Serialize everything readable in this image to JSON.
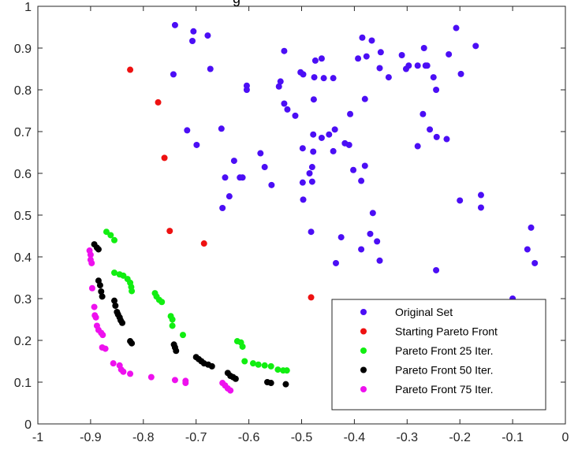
{
  "chart_data": {
    "type": "scatter",
    "title": "g",
    "xlim": [
      -1,
      0
    ],
    "ylim": [
      0,
      1
    ],
    "xticks": [
      -1,
      -0.9,
      -0.8,
      -0.7,
      -0.6,
      -0.5,
      -0.4,
      -0.3,
      -0.2,
      -0.1,
      0
    ],
    "xtick_labels": [
      "-1",
      "-0.9",
      "-0.8",
      "-0.7",
      "-0.6",
      "-0.5",
      "-0.4",
      "-0.3",
      "-0.2",
      "-0.1",
      "0"
    ],
    "yticks": [
      0,
      0.1,
      0.2,
      0.3,
      0.4,
      0.5,
      0.6,
      0.7,
      0.8,
      0.9,
      1
    ],
    "ytick_labels": [
      "0",
      "0.1",
      "0.2",
      "0.3",
      "0.4",
      "0.5",
      "0.6",
      "0.7",
      "0.8",
      "0.9",
      "1"
    ],
    "grid": false,
    "legend_position": "bottom-right",
    "series": [
      {
        "name": "Original Set",
        "color": "#4b0ef5",
        "points": [
          [
            -0.74,
            0.955
          ],
          [
            -0.705,
            0.94
          ],
          [
            -0.678,
            0.93
          ],
          [
            -0.707,
            0.917
          ],
          [
            -0.743,
            0.837
          ],
          [
            -0.673,
            0.85
          ],
          [
            -0.604,
            0.81
          ],
          [
            -0.604,
            0.8
          ],
          [
            -0.652,
            0.707
          ],
          [
            -0.717,
            0.703
          ],
          [
            -0.699,
            0.668
          ],
          [
            -0.628,
            0.63
          ],
          [
            -0.612,
            0.59
          ],
          [
            -0.617,
            0.59
          ],
          [
            -0.645,
            0.59
          ],
          [
            -0.637,
            0.545
          ],
          [
            -0.65,
            0.517
          ],
          [
            -0.578,
            0.648
          ],
          [
            -0.57,
            0.615
          ],
          [
            -0.557,
            0.572
          ],
          [
            -0.543,
            0.808
          ],
          [
            -0.54,
            0.82
          ],
          [
            -0.533,
            0.893
          ],
          [
            -0.533,
            0.767
          ],
          [
            -0.527,
            0.753
          ],
          [
            -0.512,
            0.738
          ],
          [
            -0.502,
            0.842
          ],
          [
            -0.497,
            0.837
          ],
          [
            -0.498,
            0.66
          ],
          [
            -0.498,
            0.578
          ],
          [
            -0.497,
            0.537
          ],
          [
            -0.485,
            0.6
          ],
          [
            -0.48,
            0.58
          ],
          [
            -0.48,
            0.615
          ],
          [
            -0.478,
            0.652
          ],
          [
            -0.478,
            0.693
          ],
          [
            -0.477,
            0.777
          ],
          [
            -0.476,
            0.83
          ],
          [
            -0.474,
            0.87
          ],
          [
            -0.462,
            0.875
          ],
          [
            -0.458,
            0.828
          ],
          [
            -0.44,
            0.828
          ],
          [
            -0.448,
            0.693
          ],
          [
            -0.462,
            0.685
          ],
          [
            -0.437,
            0.705
          ],
          [
            -0.44,
            0.653
          ],
          [
            -0.418,
            0.672
          ],
          [
            -0.41,
            0.668
          ],
          [
            -0.408,
            0.742
          ],
          [
            -0.402,
            0.608
          ],
          [
            -0.393,
            0.875
          ],
          [
            -0.385,
            0.925
          ],
          [
            -0.377,
            0.88
          ],
          [
            -0.367,
            0.918
          ],
          [
            -0.38,
            0.778
          ],
          [
            -0.38,
            0.618
          ],
          [
            -0.387,
            0.582
          ],
          [
            -0.365,
            0.505
          ],
          [
            -0.37,
            0.455
          ],
          [
            -0.357,
            0.437
          ],
          [
            -0.387,
            0.418
          ],
          [
            -0.352,
            0.391
          ],
          [
            -0.352,
            0.852
          ],
          [
            -0.35,
            0.89
          ],
          [
            -0.335,
            0.83
          ],
          [
            -0.31,
            0.883
          ],
          [
            -0.302,
            0.85
          ],
          [
            -0.297,
            0.858
          ],
          [
            -0.28,
            0.858
          ],
          [
            -0.265,
            0.858
          ],
          [
            -0.268,
            0.9
          ],
          [
            -0.262,
            0.858
          ],
          [
            -0.25,
            0.83
          ],
          [
            -0.245,
            0.8
          ],
          [
            -0.27,
            0.742
          ],
          [
            -0.257,
            0.705
          ],
          [
            -0.244,
            0.687
          ],
          [
            -0.225,
            0.682
          ],
          [
            -0.28,
            0.665
          ],
          [
            -0.221,
            0.885
          ],
          [
            -0.207,
            0.948
          ],
          [
            -0.198,
            0.838
          ],
          [
            -0.17,
            0.905
          ],
          [
            -0.2,
            0.535
          ],
          [
            -0.16,
            0.548
          ],
          [
            -0.16,
            0.518
          ],
          [
            -0.245,
            0.368
          ],
          [
            -0.065,
            0.47
          ],
          [
            -0.072,
            0.418
          ],
          [
            -0.058,
            0.385
          ],
          [
            -0.1,
            0.3
          ],
          [
            -0.435,
            0.385
          ],
          [
            -0.482,
            0.46
          ],
          [
            -0.425,
            0.447
          ]
        ]
      },
      {
        "name": "Starting Pareto Front",
        "color": "#ee1111",
        "points": [
          [
            -0.825,
            0.848
          ],
          [
            -0.772,
            0.77
          ],
          [
            -0.76,
            0.637
          ],
          [
            -0.75,
            0.462
          ],
          [
            -0.685,
            0.432
          ],
          [
            -0.482,
            0.303
          ]
        ]
      },
      {
        "name": "Pareto Front 25 Iter.",
        "color": "#11ee11",
        "points": [
          [
            -0.87,
            0.46
          ],
          [
            -0.862,
            0.452
          ],
          [
            -0.855,
            0.44
          ],
          [
            -0.855,
            0.362
          ],
          [
            -0.845,
            0.358
          ],
          [
            -0.838,
            0.355
          ],
          [
            -0.83,
            0.347
          ],
          [
            -0.825,
            0.338
          ],
          [
            -0.823,
            0.328
          ],
          [
            -0.822,
            0.318
          ],
          [
            -0.778,
            0.313
          ],
          [
            -0.775,
            0.305
          ],
          [
            -0.77,
            0.297
          ],
          [
            -0.765,
            0.292
          ],
          [
            -0.748,
            0.258
          ],
          [
            -0.745,
            0.25
          ],
          [
            -0.745,
            0.235
          ],
          [
            -0.725,
            0.213
          ],
          [
            -0.622,
            0.198
          ],
          [
            -0.615,
            0.195
          ],
          [
            -0.612,
            0.185
          ],
          [
            -0.608,
            0.15
          ],
          [
            -0.592,
            0.145
          ],
          [
            -0.582,
            0.142
          ],
          [
            -0.57,
            0.14
          ],
          [
            -0.558,
            0.138
          ],
          [
            -0.545,
            0.13
          ],
          [
            -0.535,
            0.128
          ],
          [
            -0.528,
            0.128
          ]
        ]
      },
      {
        "name": "Pareto Front 50 Iter.",
        "color": "#000000",
        "points": [
          [
            -0.893,
            0.43
          ],
          [
            -0.888,
            0.422
          ],
          [
            -0.885,
            0.418
          ],
          [
            -0.885,
            0.343
          ],
          [
            -0.882,
            0.332
          ],
          [
            -0.88,
            0.317
          ],
          [
            -0.878,
            0.305
          ],
          [
            -0.855,
            0.295
          ],
          [
            -0.853,
            0.283
          ],
          [
            -0.85,
            0.268
          ],
          [
            -0.848,
            0.262
          ],
          [
            -0.845,
            0.255
          ],
          [
            -0.843,
            0.248
          ],
          [
            -0.84,
            0.242
          ],
          [
            -0.825,
            0.198
          ],
          [
            -0.822,
            0.193
          ],
          [
            -0.742,
            0.19
          ],
          [
            -0.74,
            0.183
          ],
          [
            -0.738,
            0.175
          ],
          [
            -0.7,
            0.16
          ],
          [
            -0.695,
            0.155
          ],
          [
            -0.69,
            0.15
          ],
          [
            -0.685,
            0.145
          ],
          [
            -0.677,
            0.142
          ],
          [
            -0.67,
            0.138
          ],
          [
            -0.64,
            0.122
          ],
          [
            -0.635,
            0.115
          ],
          [
            -0.63,
            0.112
          ],
          [
            -0.625,
            0.108
          ],
          [
            -0.565,
            0.1
          ],
          [
            -0.558,
            0.098
          ],
          [
            -0.53,
            0.095
          ]
        ]
      },
      {
        "name": "Pareto Front 75 Iter.",
        "color": "#ee11ee",
        "points": [
          [
            -0.902,
            0.415
          ],
          [
            -0.9,
            0.405
          ],
          [
            -0.9,
            0.393
          ],
          [
            -0.898,
            0.385
          ],
          [
            -0.897,
            0.325
          ],
          [
            -0.893,
            0.28
          ],
          [
            -0.892,
            0.26
          ],
          [
            -0.89,
            0.255
          ],
          [
            -0.888,
            0.235
          ],
          [
            -0.885,
            0.225
          ],
          [
            -0.88,
            0.218
          ],
          [
            -0.877,
            0.213
          ],
          [
            -0.878,
            0.183
          ],
          [
            -0.872,
            0.18
          ],
          [
            -0.857,
            0.145
          ],
          [
            -0.845,
            0.14
          ],
          [
            -0.842,
            0.13
          ],
          [
            -0.838,
            0.125
          ],
          [
            -0.825,
            0.12
          ],
          [
            -0.785,
            0.112
          ],
          [
            -0.74,
            0.105
          ],
          [
            -0.72,
            0.103
          ],
          [
            -0.72,
            0.098
          ],
          [
            -0.65,
            0.098
          ],
          [
            -0.645,
            0.092
          ],
          [
            -0.64,
            0.085
          ],
          [
            -0.635,
            0.08
          ]
        ]
      }
    ]
  }
}
